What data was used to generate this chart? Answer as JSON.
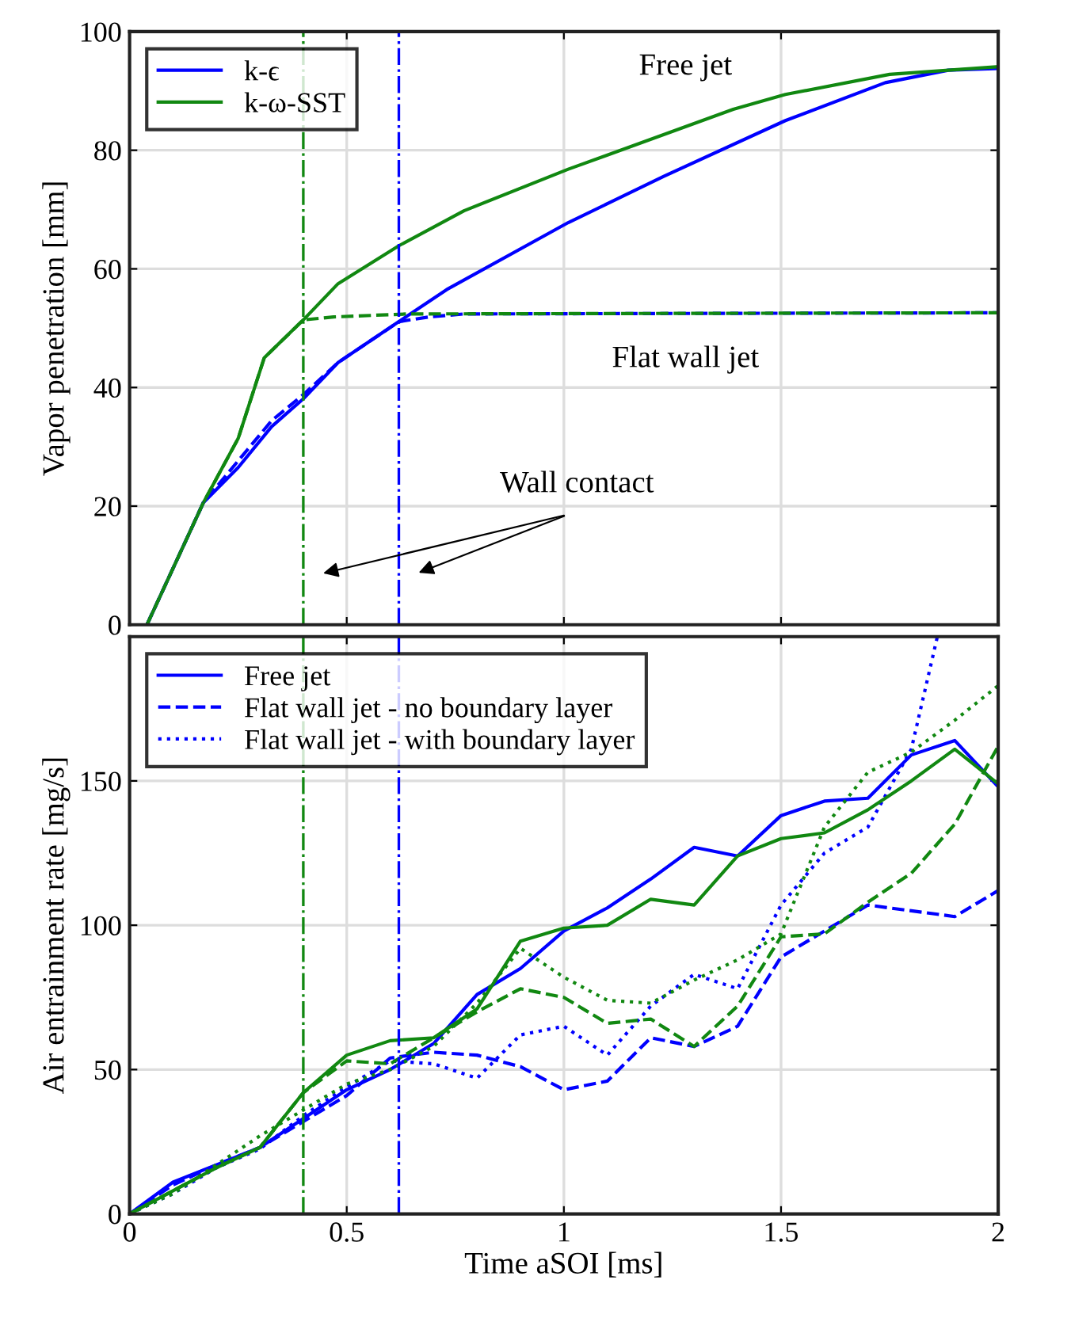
{
  "chart_data": [
    {
      "type": "line",
      "ylabel": "Vapor penetration [mm]",
      "xlim": [
        0,
        2
      ],
      "ylim": [
        0,
        100
      ],
      "xticks": [
        0,
        0.5,
        1,
        1.5,
        2
      ],
      "yticks": [
        0,
        20,
        40,
        60,
        80,
        100
      ],
      "tick_labels": "y",
      "grid": true,
      "legend": "top left",
      "series": [
        {
          "name": "k-ϵ",
          "color": "#0000ff",
          "line_style": "solid",
          "x": [
            0.04,
            0.17,
            0.25,
            0.327,
            0.4,
            0.48,
            0.62,
            0.73,
            1.01,
            1.23,
            1.51,
            1.74,
            1.885,
            2.0
          ],
          "values": [
            0,
            20.6,
            26.5,
            33.4,
            38.1,
            44.2,
            51.1,
            56.5,
            67.8,
            75.6,
            85,
            91.4,
            93.5,
            93.8
          ]
        },
        {
          "name": "k-ω-SST",
          "color": "#118811",
          "line_style": "solid",
          "x": [
            0.04,
            0.17,
            0.25,
            0.31,
            0.4,
            0.48,
            0.62,
            0.77,
            1.01,
            1.39,
            1.51,
            1.75,
            2.0
          ],
          "values": [
            0,
            20.6,
            31.4,
            45,
            51.4,
            57.5,
            63.9,
            69.8,
            76.8,
            86.9,
            89.4,
            92.8,
            94.1
          ]
        },
        {
          "color": "#0000ff",
          "line_style": "dashed",
          "x": [
            0.04,
            0.17,
            0.327,
            0.4,
            0.48,
            0.62,
            0.69,
            0.77,
            2.0
          ],
          "values": [
            0,
            20.6,
            34.4,
            38.8,
            44.2,
            51.1,
            51.9,
            52.4,
            52.6
          ]
        },
        {
          "color": "#118811",
          "line_style": "dashed",
          "x": [
            0.04,
            0.17,
            0.25,
            0.31,
            0.4,
            0.47,
            0.64,
            2.0
          ],
          "values": [
            0,
            20.6,
            31.4,
            45,
            51.4,
            51.9,
            52.4,
            52.6
          ]
        }
      ],
      "ref_lines": [
        {
          "axis": "x",
          "value": 0.4,
          "color": "#118811",
          "line_style": "dashdot"
        },
        {
          "axis": "x",
          "value": 0.62,
          "color": "#0000ff",
          "line_style": "dashdot"
        }
      ],
      "annotations": [
        "Free jet",
        "Flat wall jet",
        "Wall contact"
      ]
    },
    {
      "type": "line",
      "xlabel": "Time aSOI [ms]",
      "ylabel": "Air entrainment rate [mg/s]",
      "xlim": [
        0,
        2
      ],
      "ylim": [
        0,
        200
      ],
      "xticks": [
        0,
        0.5,
        1,
        1.5,
        2
      ],
      "yticks": [
        0,
        50,
        100,
        150
      ],
      "grid": true,
      "legend": "top left",
      "x": [
        0,
        0.1,
        0.2,
        0.3,
        0.4,
        0.5,
        0.6,
        0.7,
        0.8,
        0.9,
        1.0,
        1.1,
        1.2,
        1.3,
        1.4,
        1.5,
        1.6,
        1.7,
        1.8,
        1.9,
        2.0
      ],
      "series": [
        {
          "name": "Free jet",
          "color": "#0000ff",
          "line_style": "solid",
          "values": [
            0,
            11,
            17,
            23,
            33,
            43,
            50,
            59,
            76,
            85,
            98,
            106,
            116,
            127,
            124,
            138,
            143,
            144,
            159,
            164,
            148
          ]
        },
        {
          "name": "Flat wall jet - no boundary layer",
          "color": "#0000ff",
          "line_style": "dashed",
          "values": [
            0,
            10,
            17,
            23,
            32,
            41,
            54,
            56,
            55,
            51,
            43,
            46,
            61,
            58,
            65,
            89,
            98,
            107,
            105,
            103,
            112
          ]
        },
        {
          "name": "Flat wall jet - with boundary layer",
          "color": "#0000ff",
          "line_style": "dotted",
          "x": [
            0,
            0.1,
            0.2,
            0.3,
            0.4,
            0.5,
            0.6,
            0.7,
            0.8,
            0.9,
            1.0,
            1.1,
            1.2,
            1.3,
            1.4,
            1.5,
            1.6,
            1.7,
            1.8,
            1.86
          ],
          "values": [
            0,
            7,
            16,
            22.5,
            34,
            44,
            53,
            52,
            47,
            62,
            65,
            55,
            72,
            83,
            78,
            107,
            125,
            134,
            161,
            200
          ]
        },
        {
          "color": "#118811",
          "line_style": "solid",
          "values": [
            0,
            8,
            16,
            23,
            42,
            55,
            60,
            61,
            71,
            94.5,
            99,
            100,
            109,
            107,
            124,
            130,
            132,
            140,
            150,
            161,
            149
          ]
        },
        {
          "color": "#118811",
          "line_style": "dashed",
          "values": [
            0,
            8,
            16,
            23,
            42,
            53,
            52,
            61,
            70,
            78,
            75,
            66,
            67.5,
            58,
            72,
            96,
            97,
            108,
            118,
            135,
            162
          ]
        },
        {
          "color": "#118811",
          "line_style": "dotted",
          "values": [
            0,
            7,
            17,
            27,
            36,
            45,
            50,
            58,
            73,
            92,
            82,
            74,
            73,
            81,
            88,
            97,
            134,
            153,
            160,
            171,
            183
          ]
        }
      ],
      "ref_lines": [
        {
          "axis": "x",
          "value": 0.4,
          "color": "#118811",
          "line_style": "dashdot"
        },
        {
          "axis": "x",
          "value": 0.62,
          "color": "#0000ff",
          "line_style": "dashdot"
        }
      ]
    }
  ]
}
